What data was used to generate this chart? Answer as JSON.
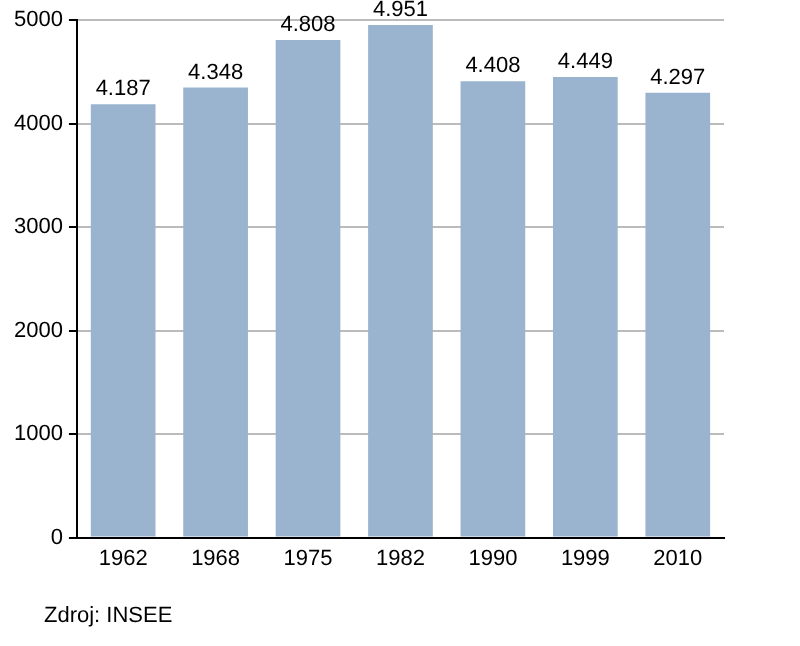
{
  "chart_data": {
    "type": "bar",
    "categories": [
      "1962",
      "1968",
      "1975",
      "1982",
      "1990",
      "1999",
      "2010"
    ],
    "values": [
      4187,
      4348,
      4808,
      4951,
      4408,
      4449,
      4297
    ],
    "value_labels": [
      "4.187",
      "4.348",
      "4.808",
      "4.951",
      "4.408",
      "4.449",
      "4.297"
    ],
    "color": "#9ab4d0",
    "ylim": [
      0,
      5000
    ],
    "yticks": [
      0,
      1000,
      2000,
      3000,
      4000,
      5000
    ],
    "grid": "y",
    "legend": false,
    "annotations": [
      "Zdroj: INSEE"
    ]
  }
}
